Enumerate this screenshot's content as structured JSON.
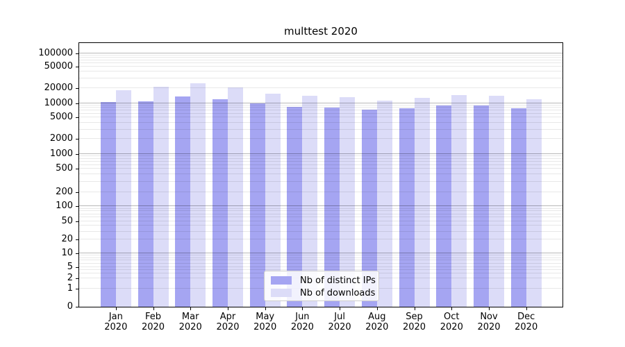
{
  "title": "multtest 2020",
  "chart_data": {
    "type": "bar",
    "title": "multtest 2020",
    "categories": [
      "Jan",
      "Feb",
      "Mar",
      "Apr",
      "May",
      "Jun",
      "Jul",
      "Aug",
      "Sep",
      "Oct",
      "Nov",
      "Dec"
    ],
    "year": "2020",
    "series": [
      {
        "name": "Nb of distinct IPs",
        "color": "#a5a5f2",
        "values": [
          10400,
          10900,
          13650,
          11850,
          9900,
          8480,
          8100,
          7360,
          7700,
          8850,
          8850,
          7760
        ]
      },
      {
        "name": "Nb of downloads",
        "color": "#dcdcf8",
        "values": [
          18300,
          21000,
          24500,
          20600,
          15700,
          13900,
          13350,
          11400,
          12600,
          14700,
          14200,
          12100
        ]
      }
    ],
    "y_ticks": [
      0,
      1,
      2,
      5,
      10,
      20,
      50,
      100,
      200,
      500,
      1000,
      2000,
      5000,
      10000,
      20000,
      50000,
      100000
    ],
    "yscale": "symlog",
    "ylim": [
      0,
      160000
    ],
    "grid": "on",
    "legend_position": "lower center"
  }
}
